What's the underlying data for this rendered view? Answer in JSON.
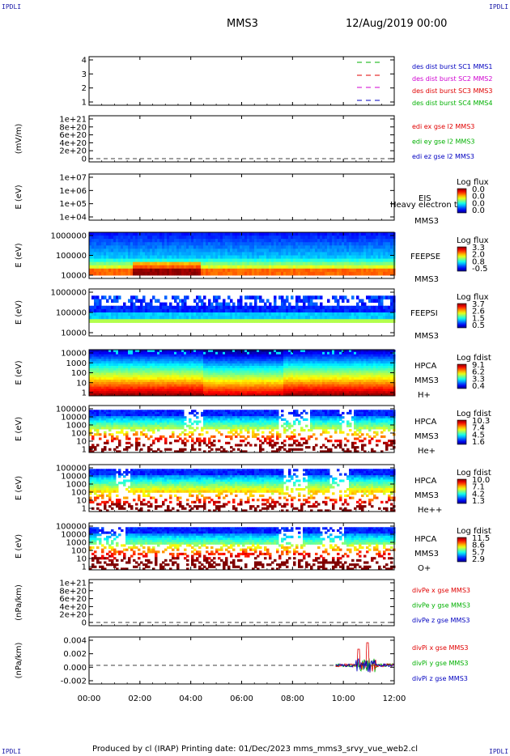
{
  "corner_mark": "IPDLI",
  "header": {
    "spacecraft": "MMS3",
    "datetime": "12/Aug/2019 00:00"
  },
  "footer": "Produced by cl (IRAP)   Printing date: 01/Dec/2023   mms_mms3_srvy_vue_web2.cl",
  "colors": {
    "red": "#e00000",
    "green": "#00b000",
    "blue": "#0000c0",
    "magenta": "#d000d0"
  },
  "chart_data": {
    "type": "heatmap",
    "x_axis": {
      "ticks": [
        "00:00",
        "02:00",
        "04:00",
        "06:00",
        "08:00",
        "10:00",
        "12:00"
      ],
      "range_hours": [
        0,
        12
      ]
    },
    "panels": [
      {
        "id": "burst",
        "ylabel": "",
        "yticks": [
          "4",
          "3",
          "2",
          "1"
        ],
        "legend": [
          {
            "text": "des dist burst SC1 MMS1",
            "color": "#0000c0"
          },
          {
            "text": "des dist burst SC2 MMS2",
            "color": "#d000d0"
          },
          {
            "text": "des dist burst SC3 MMS3",
            "color": "#e00000"
          },
          {
            "text": "des dist burst SC4 MMS4",
            "color": "#00b000"
          }
        ]
      },
      {
        "id": "edi",
        "ylabel": "(mV/m)",
        "yticks": [
          "1e+21",
          "8e+20",
          "6e+20",
          "4e+20",
          "2e+20",
          "0"
        ],
        "legend": [
          {
            "text": "edi ex gse l2 MMS3",
            "color": "#e00000"
          },
          {
            "text": "edi ey gse l2 MMS3",
            "color": "#00b000"
          },
          {
            "text": "edi ez gse l2 MMS3",
            "color": "#0000c0"
          }
        ]
      },
      {
        "id": "eis",
        "ylabel": "E (eV)",
        "yticks": [
          "1e+07",
          "1e+06",
          "1e+05",
          "1e+04"
        ],
        "instrument": "EIS",
        "extra": "Heavy electron to",
        "sc": "MMS3",
        "cb_title": "Log flux",
        "cb_ticks": [
          "0.0",
          "0.0",
          "0.0",
          "0.0"
        ]
      },
      {
        "id": "feepse",
        "ylabel": "E (eV)",
        "yticks": [
          "1000000",
          "100000",
          "10000"
        ],
        "instrument": "FEEPSE",
        "sc": "MMS3",
        "cb_title": "Log flux",
        "cb_ticks": [
          "3.3",
          "2.0",
          "0.8",
          "-0.5"
        ]
      },
      {
        "id": "feepsi",
        "ylabel": "E (eV)",
        "yticks": [
          "1000000",
          "100000",
          "10000"
        ],
        "instrument": "FEEPSI",
        "sc": "MMS3",
        "cb_title": "Log flux",
        "cb_ticks": [
          "3.7",
          "2.6",
          "1.5",
          "0.5"
        ]
      },
      {
        "id": "hpca_h",
        "ylabel": "E (eV)",
        "yticks": [
          "10000",
          "1000",
          "100",
          "10",
          "1"
        ],
        "instrument": "HPCA",
        "sc": "MMS3",
        "species": "H+",
        "cb_title": "Log fdist",
        "cb_ticks": [
          "9.1",
          "6.2",
          "3.3",
          "0.4"
        ]
      },
      {
        "id": "hpca_he",
        "ylabel": "E (eV)",
        "yticks": [
          "100000",
          "10000",
          "1000",
          "100",
          "10",
          "1"
        ],
        "instrument": "HPCA",
        "sc": "MMS3",
        "species": "He+",
        "cb_title": "Log fdist",
        "cb_ticks": [
          "10.3",
          "7.4",
          "4.5",
          "1.6"
        ]
      },
      {
        "id": "hpca_hepp",
        "ylabel": "E (eV)",
        "yticks": [
          "100000",
          "10000",
          "1000",
          "100",
          "10",
          "1"
        ],
        "instrument": "HPCA",
        "sc": "MMS3",
        "species": "He++",
        "cb_title": "Log fdist",
        "cb_ticks": [
          "10.0",
          "7.1",
          "4.2",
          "1.3"
        ]
      },
      {
        "id": "hpca_o",
        "ylabel": "E (eV)",
        "yticks": [
          "100000",
          "10000",
          "1000",
          "100",
          "10",
          "1"
        ],
        "instrument": "HPCA",
        "sc": "MMS3",
        "species": "O+",
        "cb_title": "Log fdist",
        "cb_ticks": [
          "11.5",
          "8.6",
          "5.7",
          "2.9"
        ]
      },
      {
        "id": "divpe",
        "ylabel": "(nPa/km)",
        "yticks": [
          "1e+21",
          "8e+20",
          "6e+20",
          "4e+20",
          "2e+20",
          "0"
        ],
        "legend": [
          {
            "text": "divPe x gse MMS3",
            "color": "#e00000"
          },
          {
            "text": "divPe y gse MMS3",
            "color": "#00b000"
          },
          {
            "text": "divPe z gse MMS3",
            "color": "#0000c0"
          }
        ]
      },
      {
        "id": "divpi",
        "ylabel": "(nPa/km)",
        "yticks": [
          "0.004",
          "0.002",
          "0.000",
          "-0.002"
        ],
        "legend": [
          {
            "text": "divPi x gse MMS3",
            "color": "#e00000"
          },
          {
            "text": "divPi y gse MMS3",
            "color": "#00b000"
          },
          {
            "text": "divPi z gse MMS3",
            "color": "#0000c0"
          }
        ]
      }
    ]
  }
}
